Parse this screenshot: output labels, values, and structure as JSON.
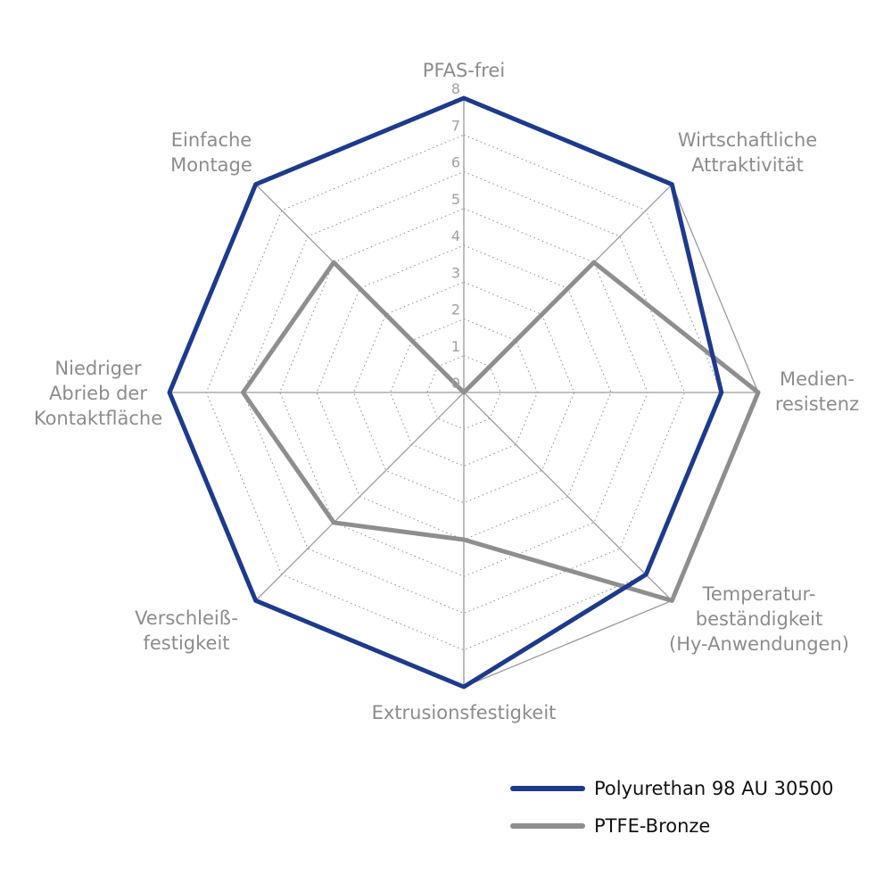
{
  "chart_data": {
    "type": "radar",
    "axes": [
      "PFAS-frei",
      "Wirtschaftliche Attraktivität",
      "Medienresistenz",
      "Temperaturbeständigkeit (Hy-Anwendungen)",
      "Extrusionsfestigkeit",
      "Verschleißfestigkeit",
      "Niedriger Abrieb der Kontaktfläche",
      "Einfache Montage"
    ],
    "axis_label_lines": [
      [
        "PFAS-frei"
      ],
      [
        "Wirtschaftliche",
        "Attraktivität"
      ],
      [
        "Medien-",
        "resistenz"
      ],
      [
        "Temperatur-",
        "beständigkeit",
        "(Hy-Anwendungen)"
      ],
      [
        "Extrusionsfestigkeit"
      ],
      [
        "Verschleiß-",
        "festigkeit"
      ],
      [
        "Niedriger",
        "Abrieb der",
        "Kontaktfläche"
      ],
      [
        "Einfache",
        "Montage"
      ]
    ],
    "ticks": [
      "0",
      "1",
      "2",
      "3",
      "4",
      "5",
      "6",
      "7",
      "8"
    ],
    "rlim": [
      0,
      8
    ],
    "series": [
      {
        "name": "Polyurethan 98 AU 30500",
        "color": "#1d3a8c",
        "values": [
          8,
          8,
          7,
          7,
          8,
          8,
          8,
          8
        ]
      },
      {
        "name": "PTFE-Bronze",
        "color": "#8e8e8e",
        "values": [
          0,
          5,
          8,
          8,
          4,
          5,
          6,
          5
        ]
      }
    ],
    "grid": true,
    "legend_position": "bottom-right"
  }
}
